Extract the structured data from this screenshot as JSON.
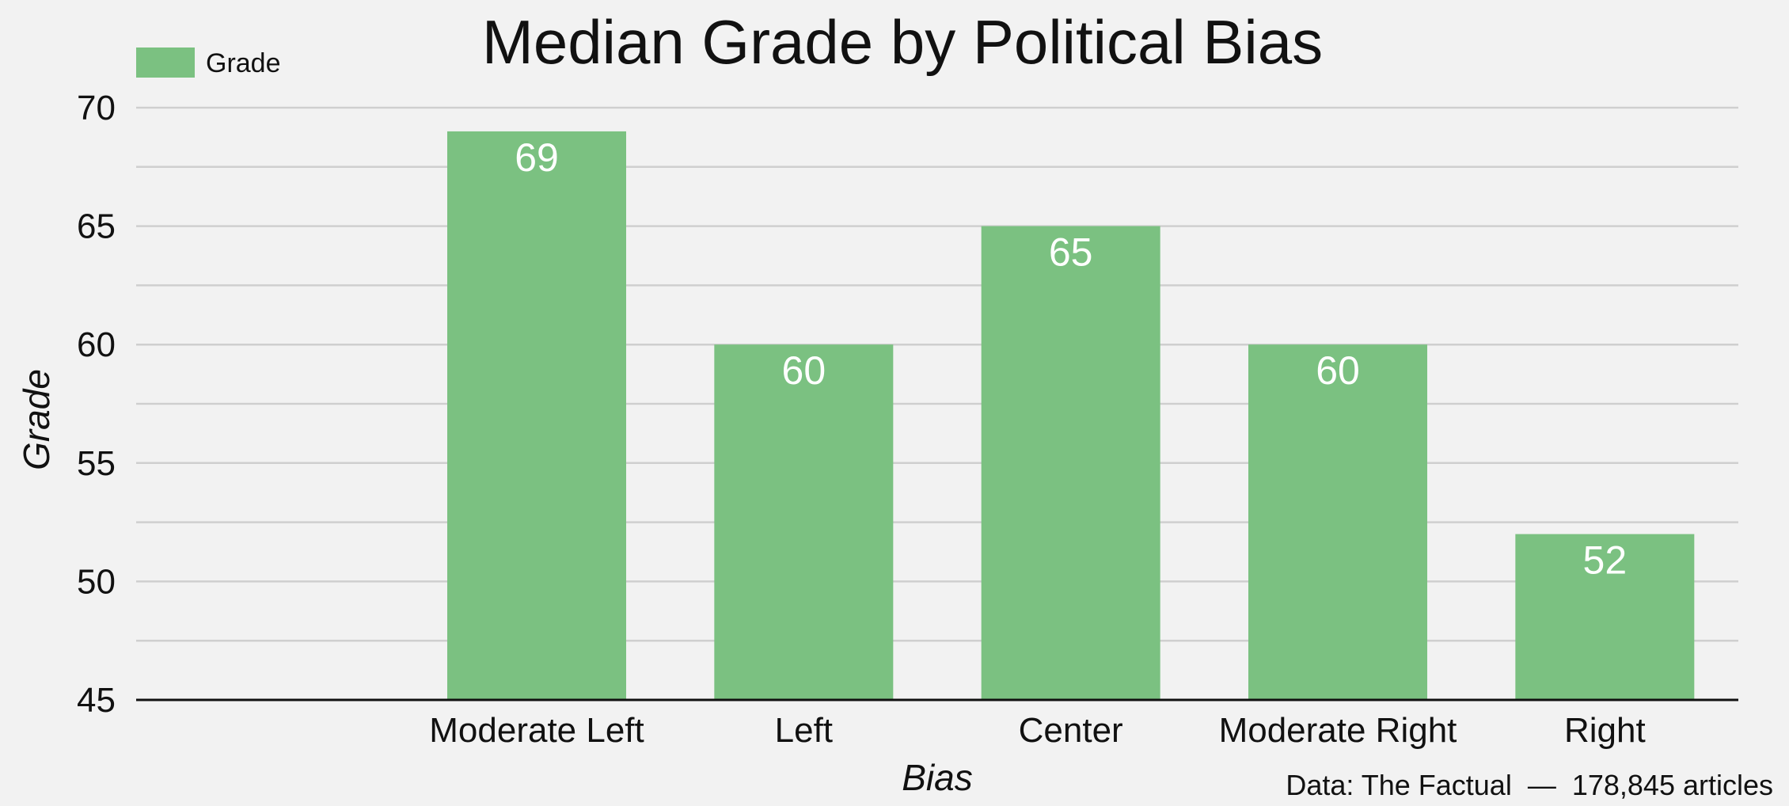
{
  "chart_data": {
    "type": "bar",
    "title": "Median Grade by Political Bias",
    "xlabel": "Bias",
    "ylabel": "Grade",
    "categories": [
      "Moderate Left",
      "Left",
      "Center",
      "Moderate Right",
      "Right"
    ],
    "series": [
      {
        "name": "Grade",
        "values": [
          69,
          60,
          65,
          60,
          52
        ],
        "color": "#7bc181"
      }
    ],
    "ylim": [
      45,
      70
    ],
    "y_ticks": [
      45,
      50,
      55,
      60,
      65,
      70
    ],
    "grid": true,
    "legend_position": "top-left",
    "data_labels": true,
    "source_note": "Data: The Factual  —  178,845 articles"
  },
  "colors": {
    "background": "#f2f2f2",
    "bar": "#7bc181",
    "grid": "#cfcfcf",
    "axis": "#111111",
    "text": "#111111",
    "data_label": "#ffffff"
  }
}
